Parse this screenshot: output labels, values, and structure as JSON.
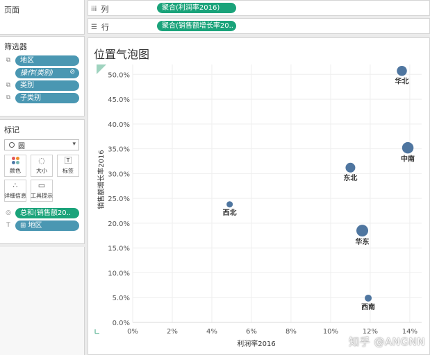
{
  "pages": {
    "title": "页面"
  },
  "filters": {
    "title": "筛选器",
    "items": [
      {
        "label": "地区",
        "style": "blue"
      },
      {
        "label": "操作(类别)",
        "style": "blue-italic"
      },
      {
        "label": "类别",
        "style": "blue"
      },
      {
        "label": "子类别",
        "style": "blue"
      }
    ]
  },
  "marks": {
    "title": "标记",
    "mark_type": "圆",
    "buttons": [
      {
        "label": "颜色",
        "icon": "color-dots-icon"
      },
      {
        "label": "大小",
        "icon": "size-icon"
      },
      {
        "label": "标签",
        "icon": "label-icon"
      },
      {
        "label": "详细信息",
        "icon": "detail-icon"
      },
      {
        "label": "工具提示",
        "icon": "tooltip-icon"
      }
    ],
    "fields": [
      {
        "label": "总和(销售额20..",
        "style": "green",
        "icon": "size-field-icon"
      },
      {
        "label": "地区",
        "style": "blue",
        "icon": "label-field-icon"
      }
    ]
  },
  "columns_shelf": {
    "label": "列",
    "pill": "聚合(利润率2016)"
  },
  "rows_shelf": {
    "label": "行",
    "pill": "聚合(销售额增长率20.."
  },
  "view": {
    "title": "位置气泡图"
  },
  "watermark": "知乎 @ANGNN",
  "colors": {
    "green_pill": "#1aa37a",
    "blue_pill": "#4a97b2",
    "mark": "#4f76a0"
  },
  "chart_data": {
    "type": "scatter",
    "title": "位置气泡图",
    "xlabel": "利润率2016",
    "ylabel": "销售额增长率2016",
    "x_ticks": [
      "0%",
      "2%",
      "4%",
      "6%",
      "8%",
      "10%",
      "12%",
      "14%"
    ],
    "y_ticks": [
      "0.0%",
      "5.0%",
      "10.0%",
      "15.0%",
      "20.0%",
      "25.0%",
      "30.0%",
      "35.0%",
      "40.0%",
      "45.0%",
      "50.0%"
    ],
    "xlim": [
      0,
      14.6
    ],
    "ylim": [
      0,
      52
    ],
    "grid": true,
    "size_measure": "总和(销售额2016)",
    "points": [
      {
        "label": "华北",
        "x": 13.6,
        "y": 50.7,
        "size": 0.75
      },
      {
        "label": "中南",
        "x": 13.9,
        "y": 35.2,
        "size": 0.95
      },
      {
        "label": "东北",
        "x": 11.0,
        "y": 31.2,
        "size": 0.7
      },
      {
        "label": "西北",
        "x": 4.9,
        "y": 23.8,
        "size": 0.2
      },
      {
        "label": "华东",
        "x": 11.6,
        "y": 18.5,
        "size": 1.0
      },
      {
        "label": "西南",
        "x": 11.9,
        "y": 4.9,
        "size": 0.3
      }
    ]
  }
}
